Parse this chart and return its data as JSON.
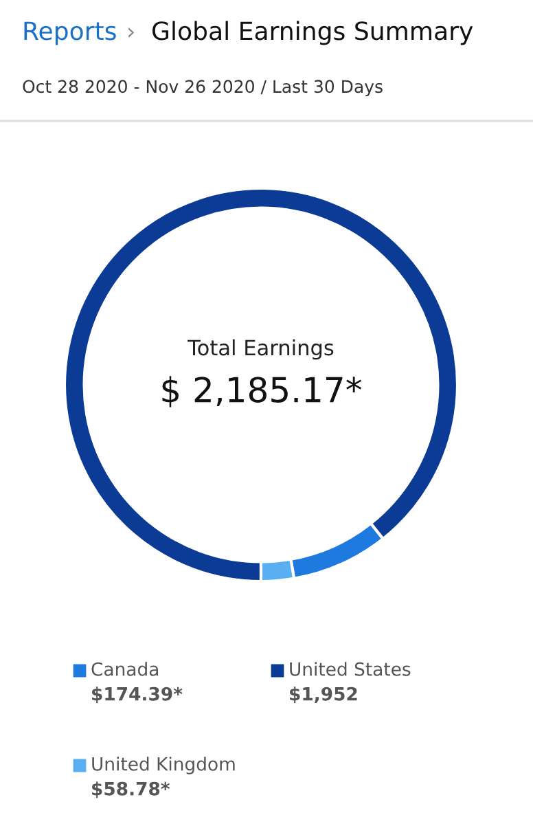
{
  "chart_data": {
    "type": "donut",
    "title": "Global Earnings Summary",
    "subtitle": "Oct 28 2020 - Nov 26 2020 / Last 30 Days",
    "annotations": [
      "Reports",
      "›",
      "Total Earnings",
      "$ 2,185.17*"
    ],
    "categories": [
      "Canada",
      "United States",
      "United Kingdom"
    ],
    "values": [
      174.39,
      1952,
      58.78
    ],
    "colors": [
      "#1f7ae0",
      "#0b3b94",
      "#5aaef2"
    ],
    "value_labels": [
      "$174.39*",
      "$1,952",
      "$58.78*"
    ],
    "legend": "bottom"
  }
}
